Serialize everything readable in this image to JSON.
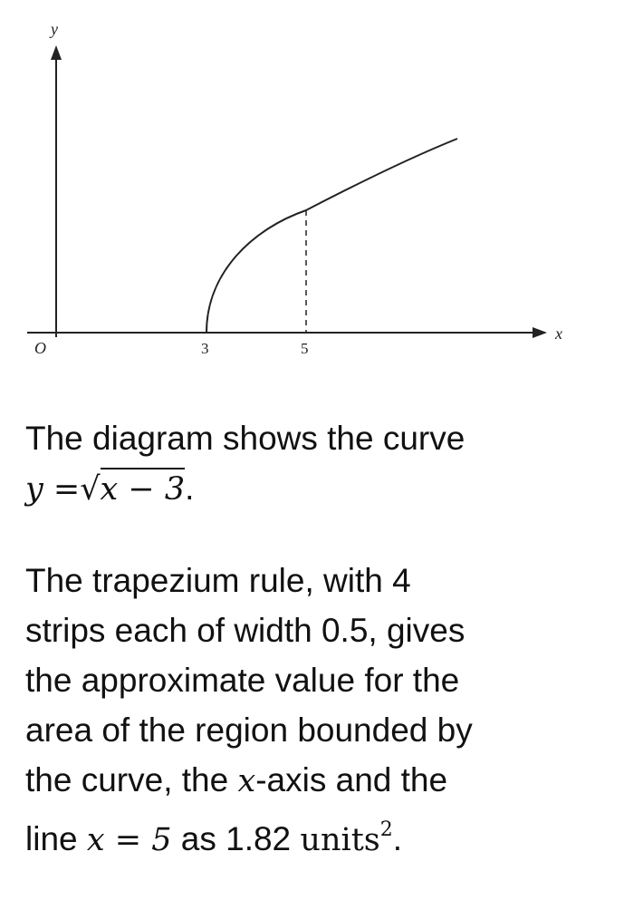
{
  "figure": {
    "y_label": "y",
    "x_label": "x",
    "origin_label": "O",
    "x_marks": [
      "3",
      "5"
    ]
  },
  "paragraphs": [
    {
      "lines": [
        [
          {
            "text": "The diagram shows the curve"
          }
        ],
        [
          {
            "text": "y =",
            "math": true
          },
          {
            "text": "√",
            "math": true
          },
          {
            "text": "x − 3",
            "math": true,
            "radical": true
          },
          {
            "text": "."
          }
        ]
      ]
    },
    {
      "lines": [
        [
          {
            "text": "The trapezium rule, with 4"
          }
        ],
        [
          {
            "text": "strips each of width 0.5, gives"
          }
        ],
        [
          {
            "text": "the approximate value for the"
          }
        ],
        [
          {
            "text": "area of the region bounded by"
          }
        ],
        [
          {
            "text": "the curve, the "
          },
          {
            "text": "x",
            "math": true
          },
          {
            "text": "-axis and the"
          }
        ],
        [
          {
            "text": "line "
          },
          {
            "text": "x = 5",
            "math": true
          },
          {
            "text": " as 1.82 "
          },
          {
            "text": "units",
            "math": true,
            "upright": true
          },
          {
            "text": "2",
            "math": true,
            "upright": true,
            "sup": true
          },
          {
            "text": "."
          }
        ]
      ]
    }
  ]
}
